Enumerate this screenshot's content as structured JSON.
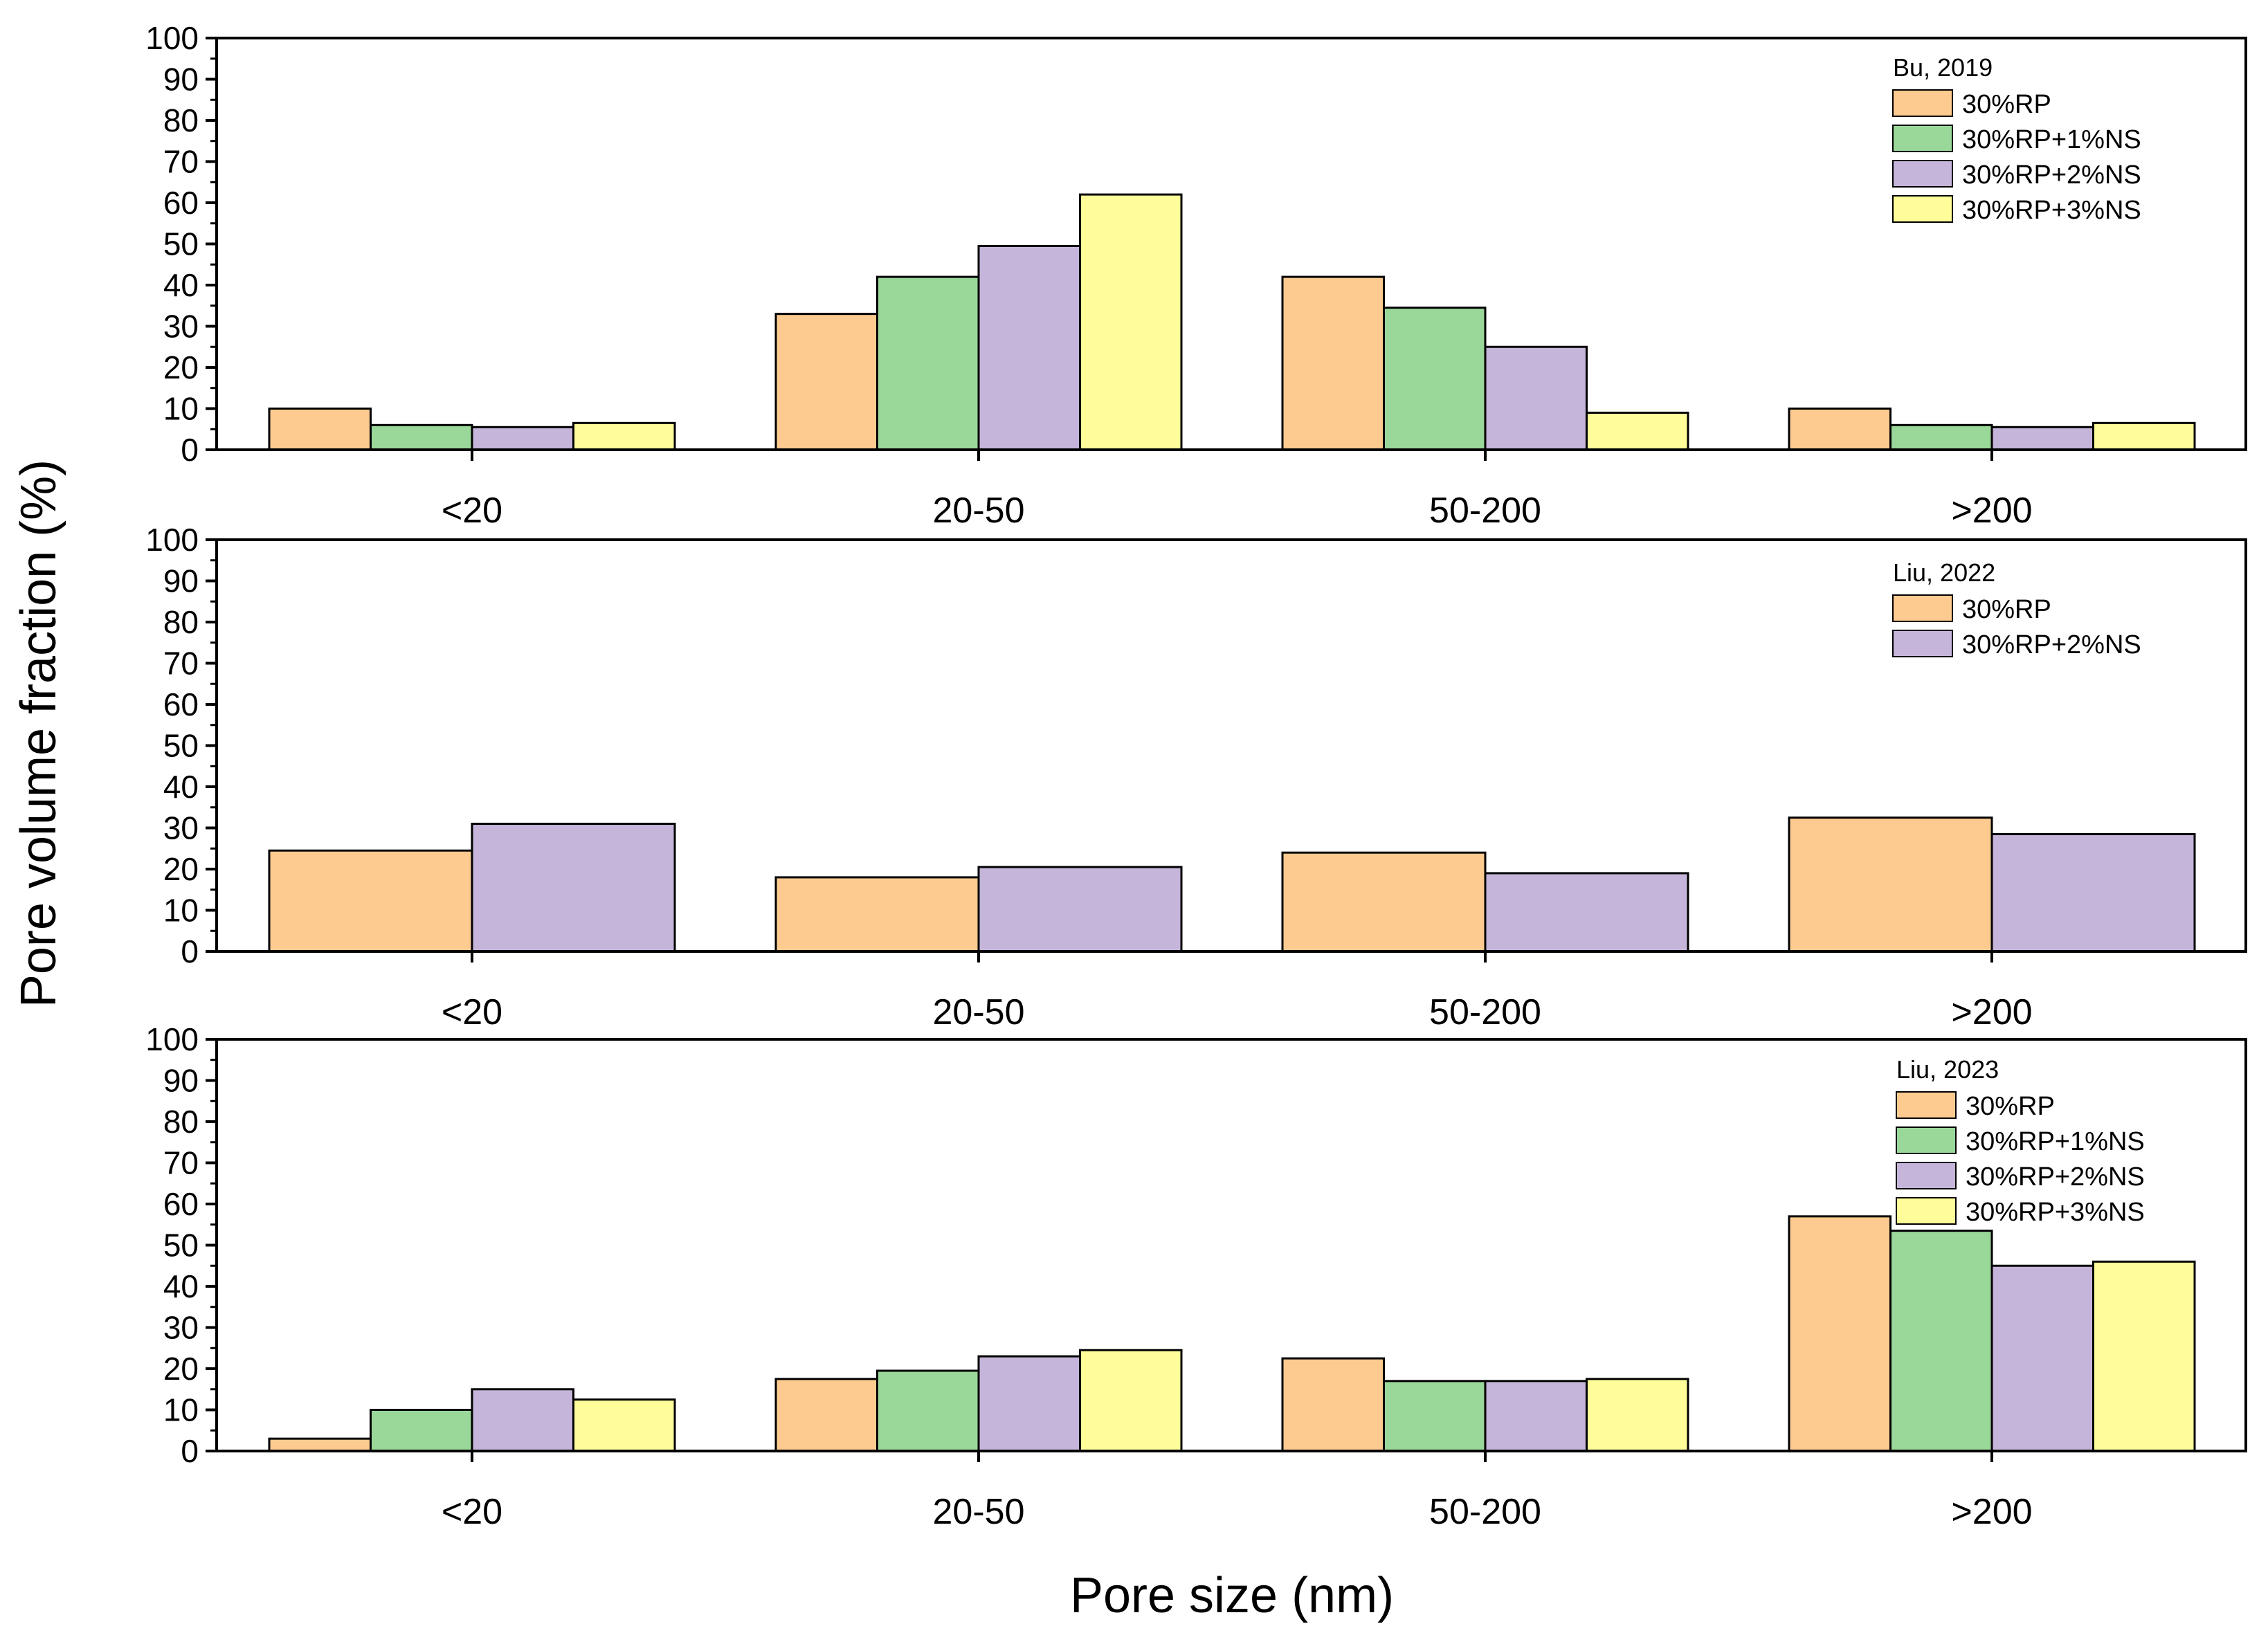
{
  "figure": {
    "ylabel": "Pore volume fraction (%)",
    "xlabel": "Pore size (nm)"
  },
  "colors": {
    "30%RP": "#FDCB8F",
    "30%RP+1%NS": "#9AD89A",
    "30%RP+2%NS": "#C6B5DA",
    "30%RP+3%NS": "#FFFC9A",
    "frame": "#000000"
  },
  "chart_data": [
    {
      "type": "bar",
      "legend_title": "Bu, 2019",
      "categories": [
        "<20",
        "20-50",
        "50-200",
        ">200"
      ],
      "ylim": [
        0,
        100
      ],
      "yticks": [
        0,
        10,
        20,
        30,
        40,
        50,
        60,
        70,
        80,
        90,
        100
      ],
      "series": [
        {
          "name": "30%RP",
          "values": [
            10,
            33,
            42,
            10
          ]
        },
        {
          "name": "30%RP+1%NS",
          "values": [
            6,
            42,
            34.5,
            6
          ]
        },
        {
          "name": "30%RP+2%NS",
          "values": [
            5.5,
            49.5,
            25,
            5.5
          ]
        },
        {
          "name": "30%RP+3%NS",
          "values": [
            6.5,
            62,
            9,
            6.5
          ]
        }
      ]
    },
    {
      "type": "bar",
      "legend_title": "Liu, 2022",
      "categories": [
        "<20",
        "20-50",
        "50-200",
        ">200"
      ],
      "ylim": [
        0,
        100
      ],
      "yticks": [
        0,
        10,
        20,
        30,
        40,
        50,
        60,
        70,
        80,
        90,
        100
      ],
      "series": [
        {
          "name": "30%RP",
          "values": [
            24.5,
            18,
            24,
            32.5
          ]
        },
        {
          "name": "30%RP+2%NS",
          "values": [
            31,
            20.5,
            19,
            28.5
          ]
        }
      ]
    },
    {
      "type": "bar",
      "legend_title": "Liu, 2023",
      "categories": [
        "<20",
        "20-50",
        "50-200",
        ">200"
      ],
      "ylim": [
        0,
        100
      ],
      "yticks": [
        0,
        10,
        20,
        30,
        40,
        50,
        60,
        70,
        80,
        90,
        100
      ],
      "series": [
        {
          "name": "30%RP",
          "values": [
            3,
            17.5,
            22.5,
            57
          ]
        },
        {
          "name": "30%RP+1%NS",
          "values": [
            10,
            19.5,
            17,
            53.5
          ]
        },
        {
          "name": "30%RP+2%NS",
          "values": [
            15,
            23,
            17,
            45
          ]
        },
        {
          "name": "30%RP+3%NS",
          "values": [
            12.5,
            24.5,
            17.5,
            46
          ]
        }
      ]
    }
  ]
}
